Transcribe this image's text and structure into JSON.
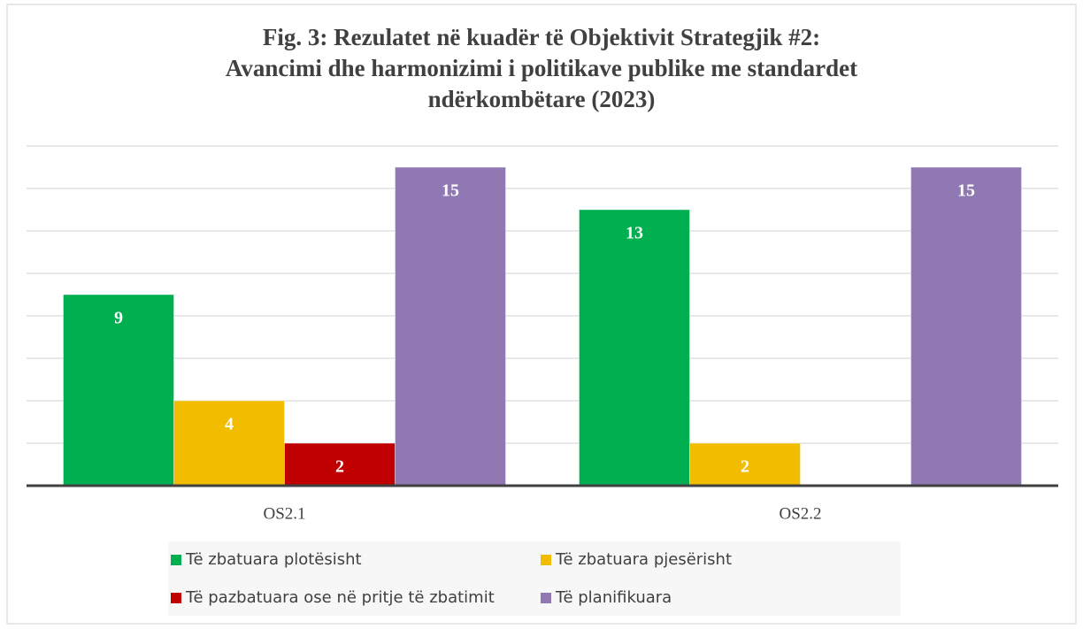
{
  "chart_data": {
    "type": "bar",
    "title": [
      "Fig. 3: Rezulatet në kuadër të Objektivit Strategjik #2:",
      "Avancimi dhe harmonizimi i politikave publike me standardet",
      "ndërkombëtare (2023)"
    ],
    "categories": [
      "OS2.1",
      "OS2.2"
    ],
    "series": [
      {
        "name": "Të zbatuara plotësisht",
        "color": "#00b050",
        "values": [
          9,
          13
        ]
      },
      {
        "name": "Të zbatuara pjesërisht",
        "color": "#f2bc00",
        "values": [
          4,
          2
        ]
      },
      {
        "name": "Të pazbatuara ose në pritje të zbatimit",
        "color": "#c00000",
        "values": [
          2,
          null
        ]
      },
      {
        "name": "Të planifikuara",
        "color": "#9079b3",
        "values": [
          15,
          15
        ]
      }
    ],
    "ylim": [
      0,
      16
    ],
    "yticks": [
      0,
      2,
      4,
      6,
      8,
      10,
      12,
      14,
      16
    ],
    "grid": true,
    "legend": "bottom"
  }
}
